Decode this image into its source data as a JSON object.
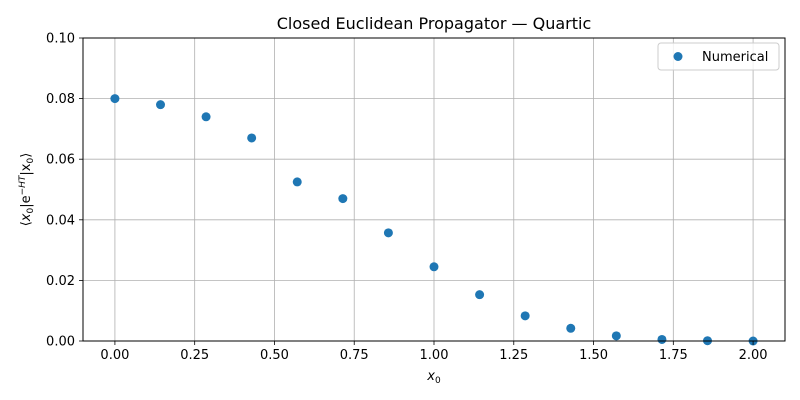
{
  "chart_data": {
    "type": "scatter",
    "title": "Closed Euclidean Propagator — Quartic",
    "xlabel_base": "x",
    "xlabel_sub": "0",
    "ylabel_parts": {
      "open": "⟨",
      "x": "x",
      "sub": "0",
      "bar": "|e",
      "sup": "−HT",
      "bar2": "|x",
      "sub2": "0",
      "close": "⟩"
    },
    "xlim": [
      -0.1,
      2.1
    ],
    "ylim": [
      0.0,
      0.1
    ],
    "xticks": [
      0.0,
      0.25,
      0.5,
      0.75,
      1.0,
      1.25,
      1.5,
      1.75,
      2.0
    ],
    "xtick_labels": [
      "0.00",
      "0.25",
      "0.50",
      "0.75",
      "1.00",
      "1.25",
      "1.50",
      "1.75",
      "2.00"
    ],
    "yticks": [
      0.0,
      0.02,
      0.04,
      0.06,
      0.08,
      0.1
    ],
    "ytick_labels": [
      "0.00",
      "0.02",
      "0.04",
      "0.06",
      "0.08",
      "0.10"
    ],
    "grid": true,
    "legend_position": "top-right",
    "series": [
      {
        "name": "Numerical",
        "color": "#1f77b4",
        "marker": "circle",
        "x": [
          0.0,
          0.1429,
          0.2857,
          0.4286,
          0.5714,
          0.7143,
          0.8571,
          1.0,
          1.1429,
          1.2857,
          1.4286,
          1.5714,
          1.7143,
          1.8571,
          2.0
        ],
        "y": [
          0.08,
          0.078,
          0.074,
          0.067,
          0.0525,
          0.047,
          0.0357,
          0.0245,
          0.0153,
          0.0083,
          0.0042,
          0.0017,
          0.0005,
          0.0001,
          0.0
        ]
      }
    ]
  }
}
